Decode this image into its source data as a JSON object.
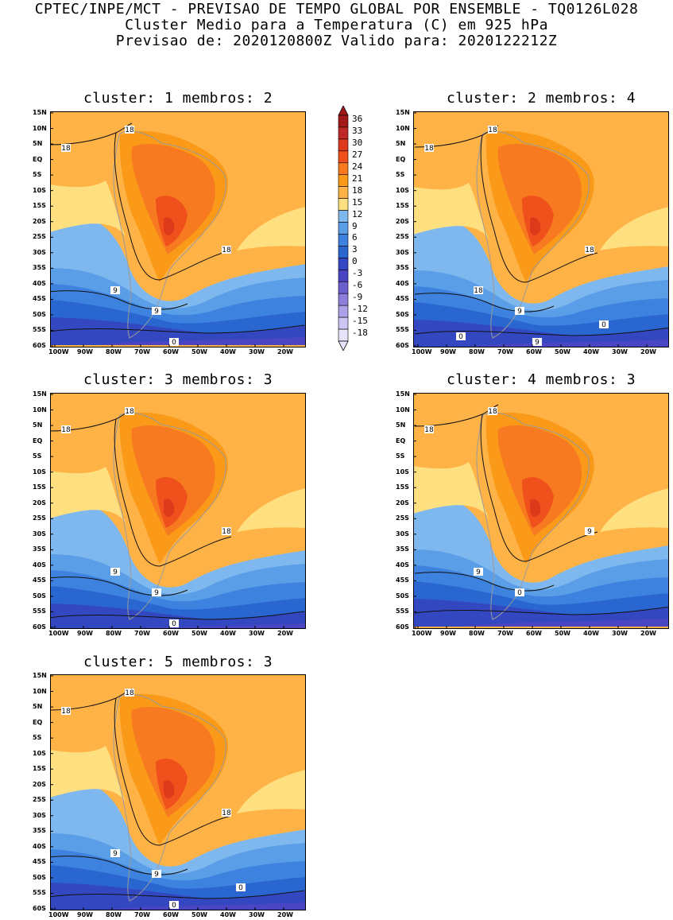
{
  "header": {
    "line1": "CPTEC/INPE/MCT - PREVISAO DE TEMPO GLOBAL POR ENSEMBLE - TQ0126L028",
    "line2": "Cluster Medio para a Temperatura (C) em 925 hPa",
    "line3": "Previsao de: 2020120800Z   Valido para: 2020122212Z"
  },
  "lat_labels": [
    "15N",
    "10N",
    "5N",
    "EQ",
    "5S",
    "10S",
    "15S",
    "20S",
    "25S",
    "30S",
    "35S",
    "40S",
    "45S",
    "50S",
    "55S",
    "60S"
  ],
  "lon_labels": [
    "100W",
    "90W",
    "80W",
    "70W",
    "60W",
    "50W",
    "40W",
    "30W",
    "20W"
  ],
  "legend": {
    "labels": [
      "36",
      "33",
      "30",
      "27",
      "24",
      "21",
      "18",
      "15",
      "12",
      "9",
      "6",
      "3",
      "0",
      "-3",
      "-6",
      "-9",
      "-12",
      "-15",
      "-18"
    ],
    "colors": [
      "#a01818",
      "#c02828",
      "#dc3a1a",
      "#f0501c",
      "#f77a20",
      "#fa9a18",
      "#ffb347",
      "#ffe080",
      "#7fb8ee",
      "#5a9ee8",
      "#3d82de",
      "#2a66d0",
      "#3348c0",
      "#4a45c2",
      "#6b5fd0",
      "#8c7fdc",
      "#aca0e8",
      "#cdc4f2",
      "#e8e2fa"
    ]
  },
  "panels": [
    {
      "title": "cluster: 1   membros: 2",
      "labels": [
        "18",
        "18",
        "18",
        "9",
        "9",
        "0"
      ]
    },
    {
      "title": "cluster: 2   membros: 4",
      "labels": [
        "18",
        "18",
        "18",
        "18",
        "9",
        "9",
        "0",
        "0"
      ]
    },
    {
      "title": "cluster: 3   membros: 3",
      "labels": [
        "18",
        "18",
        "18",
        "9",
        "9",
        "0"
      ]
    },
    {
      "title": "cluster: 4   membros: 3",
      "labels": [
        "18",
        "18",
        "9",
        "9",
        "0"
      ]
    },
    {
      "title": "cluster: 5   membros: 3",
      "labels": [
        "18",
        "18",
        "18",
        "9",
        "9",
        "0",
        "0"
      ]
    }
  ]
}
